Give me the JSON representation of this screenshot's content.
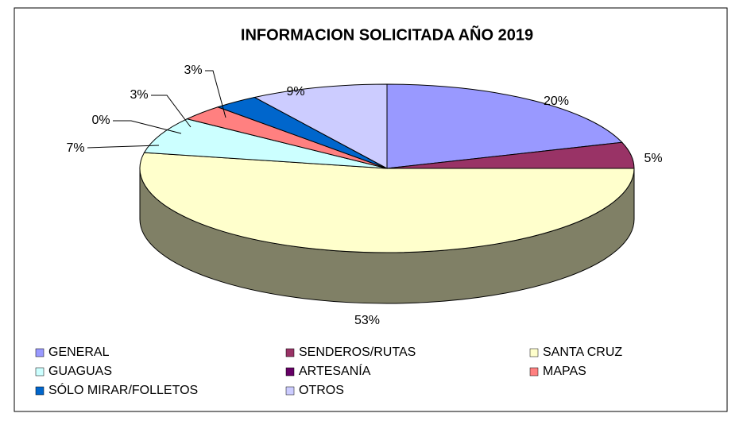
{
  "chart_data": {
    "type": "pie",
    "title": "INFORMACION SOLICITADA AÑO 2019",
    "categories": [
      "GENERAL",
      "SENDEROS/RUTAS",
      "SANTA CRUZ",
      "GUAGUAS",
      "ARTESANÍA",
      "MAPAS",
      "SÓLO MIRAR/FOLLETOS",
      "OTROS"
    ],
    "values": [
      20,
      5,
      53,
      7,
      0,
      3,
      3,
      9
    ],
    "value_labels": [
      "20%",
      "5%",
      "53%",
      "7%",
      "0%",
      "3%",
      "3%",
      "9%"
    ],
    "colors": [
      "#9999ff",
      "#993366",
      "#ffffcc",
      "#ccffff",
      "#660066",
      "#ff8080",
      "#0066cc",
      "#ccccff"
    ]
  }
}
